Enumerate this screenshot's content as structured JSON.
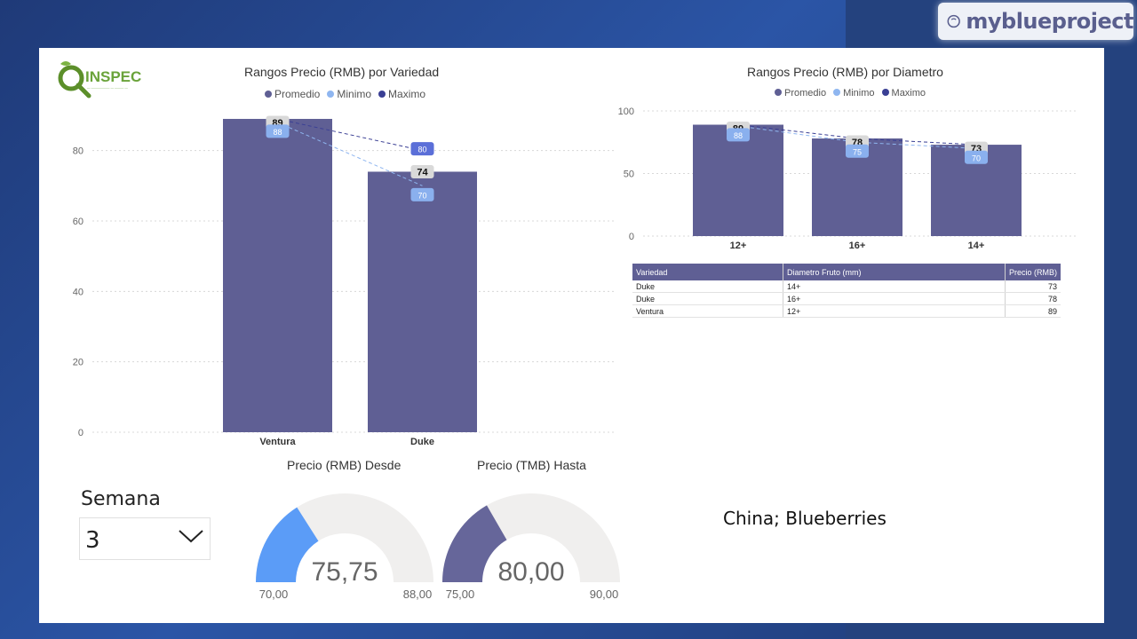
{
  "brand": {
    "name": "myblueproject",
    "logo_icon": "blueberry-icon"
  },
  "logo": {
    "text": "INSPEC",
    "initial": "Q",
    "icon": "magnifier-leaf-icon"
  },
  "colors": {
    "promedio": "#5f5f94",
    "minimo": "#8fb6f0",
    "maximo": "#3a3f94",
    "gauge_low": "#5b9cf7",
    "gauge_high": "#66669a",
    "gauge_track": "#f0efee"
  },
  "charts": {
    "variedad": {
      "title": "Rangos Precio (RMB) por Variedad",
      "legend": [
        "Promedio",
        "Minimo",
        "Maximo"
      ]
    },
    "diametro": {
      "title": "Rangos Precio (RMB) por Diametro",
      "legend": [
        "Promedio",
        "Minimo",
        "Maximo"
      ]
    }
  },
  "chart_data": [
    {
      "type": "bar",
      "title": "Rangos Precio (RMB) por Variedad",
      "categories": [
        "Ventura",
        "Duke"
      ],
      "series": [
        {
          "name": "Promedio",
          "values": [
            89,
            74
          ]
        },
        {
          "name": "Minimo",
          "values": [
            88,
            70
          ]
        },
        {
          "name": "Maximo",
          "values": [
            89,
            80
          ]
        }
      ],
      "ylim": [
        0,
        90
      ],
      "yticks": [
        0,
        20,
        40,
        60,
        80
      ],
      "grid": true,
      "legend_position": "top-center"
    },
    {
      "type": "bar",
      "title": "Rangos Precio (RMB) por Diametro",
      "categories": [
        "12+",
        "16+",
        "14+"
      ],
      "series": [
        {
          "name": "Promedio",
          "values": [
            89,
            78,
            73
          ]
        },
        {
          "name": "Minimo",
          "values": [
            88,
            75,
            70
          ]
        },
        {
          "name": "Maximo",
          "values": [
            89,
            78,
            73
          ]
        }
      ],
      "ylim": [
        0,
        100
      ],
      "yticks": [
        0,
        50,
        100
      ],
      "grid": true,
      "legend_position": "top-center"
    }
  ],
  "table": {
    "headers": [
      "Variedad",
      "Diametro Fruto (mm)",
      "Precio (RMB)"
    ],
    "rows": [
      [
        "Duke",
        "14+",
        "73"
      ],
      [
        "Duke",
        "16+",
        "78"
      ],
      [
        "Ventura",
        "12+",
        "89"
      ]
    ]
  },
  "slicer": {
    "label": "Semana",
    "value": "3"
  },
  "gauges": [
    {
      "title": "Precio (RMB) Desde",
      "value": 75.75,
      "value_text": "75,75",
      "min_text": "70,00",
      "max_text": "88,00",
      "min": 70,
      "max": 88
    },
    {
      "title": "Precio (TMB) Hasta",
      "value": 80,
      "value_text": "80,00",
      "min_text": "75,00",
      "max_text": "90,00",
      "min": 75,
      "max": 90
    }
  ],
  "note": "China; Blueberries"
}
